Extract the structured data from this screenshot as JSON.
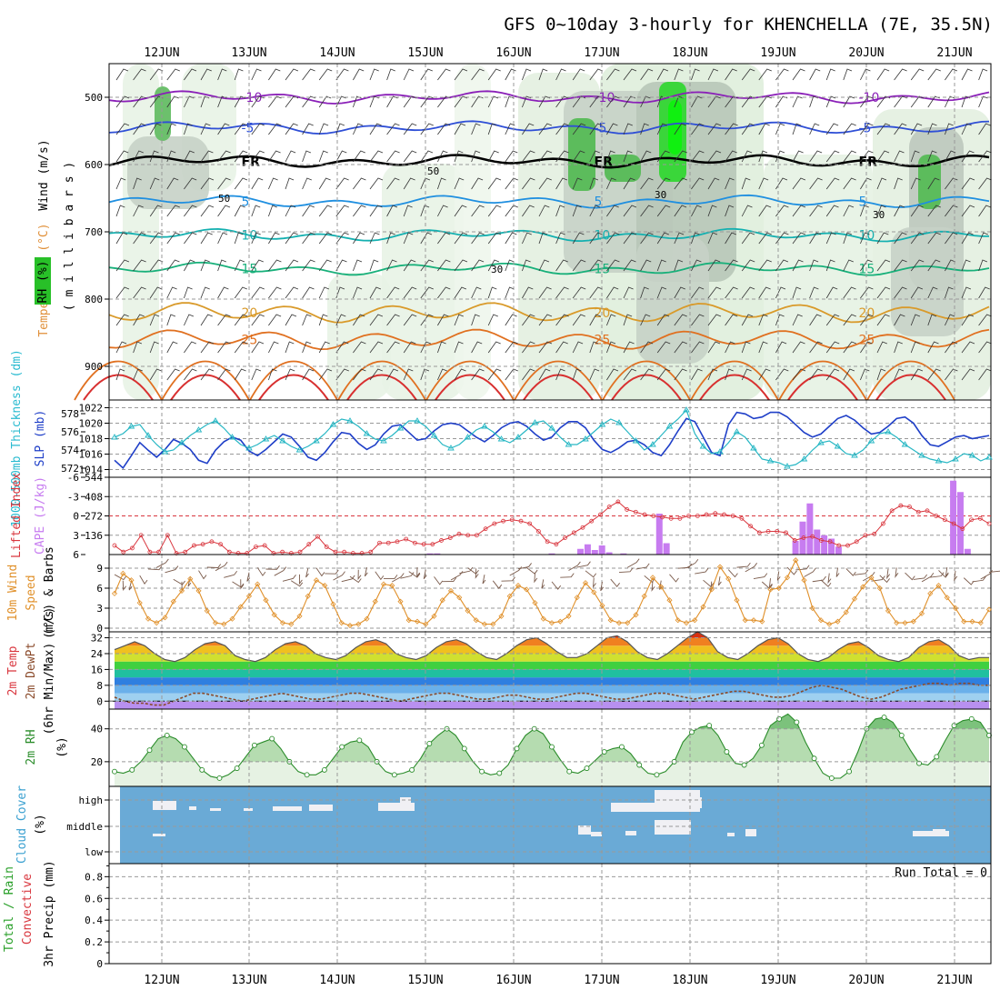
{
  "title": "GFS 0~10day 3-hourly for KHENCHELLA (7E, 35.5N)",
  "date_labels": [
    "12JUN",
    "13JUN",
    "14JUN",
    "15JUN",
    "16JUN",
    "17JUN",
    "18JUN",
    "19JUN",
    "20JUN",
    "21JUN"
  ],
  "colors": {
    "frame": "#000000",
    "grid": "#999999",
    "slp_line": "#1f3fc8",
    "thickness_line": "#27b7c4",
    "lifted_line": "#d9363e",
    "cape_bar": "#c77cf0",
    "wind_line": "#e0902a",
    "rh_line": "#2a8c2a",
    "cloud_bg": "#6aaad6",
    "cloud_patch": "#f0f0f4"
  },
  "chart_data": [
    {
      "type": "heatmap",
      "panel": "upper-air",
      "ylabel_parts": [
        "Temperature (°C)",
        "Wind (m/s)"
      ],
      "ylabel_rh": "RH (%)",
      "ylabel_units": "( m i l l i b a r s )",
      "y_ticks": [
        "500",
        "600",
        "700",
        "800",
        "900"
      ],
      "ylim": [
        450,
        950
      ],
      "temp_isotherms": [
        {
          "label": "-10",
          "level": 500,
          "color": "#8a1fb8"
        },
        {
          "label": "-5",
          "level": 545,
          "color": "#2f4fd6"
        },
        {
          "label": "FR",
          "level": 595,
          "color": "#000000"
        },
        {
          "label": "5",
          "level": 655,
          "color": "#1f8fe0"
        },
        {
          "label": "10",
          "level": 705,
          "color": "#14b0b0"
        },
        {
          "label": "15",
          "level": 755,
          "color": "#18b07a"
        },
        {
          "label": "20",
          "level": 820,
          "color": "#d99a2a"
        },
        {
          "label": "25",
          "level": 860,
          "color": "#e07020"
        }
      ],
      "rh_contour_labels": [
        "30",
        "50",
        "30",
        "50",
        "30"
      ]
    },
    {
      "type": "line",
      "panel": "slp-thickness",
      "ylabel_left": "1000-500mb Thickness (dm)",
      "ylabel_right": "SLP (mb)",
      "thickness_ticks": [
        "572",
        "574",
        "576",
        "578"
      ],
      "slp_ticks": [
        "1014",
        "1016",
        "1018",
        "1020",
        "1022"
      ],
      "slp_ylim": [
        1013,
        1023
      ],
      "thickness_ylim": [
        571,
        579.5
      ],
      "series": [
        {
          "name": "SLP",
          "unit": "mb",
          "values": [
            1015.2,
            1014.2,
            1015.8,
            1017.5,
            1016.5,
            1015.6,
            1016.6,
            1017.9,
            1017.4,
            1016.6,
            1015.2,
            1014.8,
            1016.5,
            1017.6,
            1018.2,
            1017.8,
            1016.4,
            1015.8,
            1016.6,
            1017.6,
            1018.6,
            1018.2,
            1017.0,
            1015.6,
            1015.2,
            1016.2,
            1017.6,
            1018.8,
            1018.6,
            1017.4,
            1016.6,
            1017.2,
            1018.6,
            1019.6,
            1019.8,
            1018.8,
            1017.8,
            1018.0,
            1019.0,
            1019.8,
            1020.0,
            1019.8,
            1019.0,
            1018.2,
            1017.6,
            1018.4,
            1019.4,
            1020.0,
            1020.2,
            1019.6,
            1018.6,
            1017.8,
            1018.2,
            1019.4,
            1020.2,
            1020.2,
            1019.4,
            1017.8,
            1016.6,
            1016.2,
            1016.8,
            1017.6,
            1017.8,
            1017.2,
            1016.2,
            1015.8,
            1017.2,
            1019.0,
            1020.6,
            1020.2,
            1018.2,
            1016.2,
            1015.8,
            1019.8,
            1021.4,
            1021.2,
            1020.6,
            1020.8,
            1021.4,
            1021.4,
            1020.8,
            1019.8,
            1018.8,
            1018.2,
            1018.6,
            1019.6,
            1020.6,
            1021.0,
            1020.4,
            1019.4,
            1018.6,
            1018.8,
            1019.6,
            1020.6,
            1020.8,
            1020.0,
            1018.4,
            1017.2,
            1017.0,
            1017.6,
            1018.2,
            1018.4,
            1018.0,
            1018.2,
            1018.4
          ]
        },
        {
          "name": "Thickness",
          "unit": "dm",
          "values": [
            575.4,
            575.8,
            576.6,
            576.8,
            575.6,
            574.6,
            573.8,
            574.0,
            574.8,
            575.6,
            576.2,
            576.8,
            577.2,
            576.4,
            575.4,
            574.6,
            574.2,
            574.6,
            575.2,
            575.6,
            575.0,
            574.4,
            574.0,
            574.4,
            575.0,
            575.8,
            576.8,
            577.4,
            577.2,
            576.6,
            575.8,
            575.2,
            575.0,
            575.6,
            576.4,
            577.2,
            577.2,
            576.6,
            575.6,
            574.6,
            574.2,
            574.6,
            575.4,
            576.2,
            576.6,
            576.0,
            575.2,
            574.8,
            575.4,
            576.2,
            577.0,
            577.2,
            576.4,
            575.4,
            574.6,
            574.6,
            575.2,
            576.0,
            576.8,
            577.4,
            577.0,
            576.0,
            575.0,
            574.0,
            574.6,
            575.6,
            576.6,
            577.4,
            578.4,
            575.8,
            574.4,
            573.6,
            573.8,
            574.8,
            576.0,
            575.4,
            574.2,
            573.0,
            572.8,
            572.6,
            572.2,
            572.4,
            573.0,
            574.0,
            574.8,
            575.0,
            574.4,
            573.6,
            573.4,
            574.0,
            575.0,
            575.8,
            576.0,
            575.4,
            574.6,
            574.0,
            573.4,
            573.0,
            572.8,
            572.6,
            573.0,
            573.6,
            573.4,
            572.8,
            573.2
          ]
        }
      ]
    },
    {
      "type": "bar",
      "panel": "lifted-cape",
      "ylabel_left": "Lifted Index",
      "ylabel_right": "CAPE (J/kg)",
      "li_ticks": [
        "-6",
        "-3",
        "0",
        "3",
        "6"
      ],
      "cape_ticks": [
        "544",
        "408",
        "272",
        "136"
      ],
      "cape_ylim": [
        0,
        544
      ],
      "li_ylim": [
        -6,
        6
      ],
      "series": [
        {
          "name": "Lifted Index",
          "values": [
            4.6,
            5.6,
            5.0,
            3.0,
            5.6,
            5.6,
            3.0,
            5.8,
            5.6,
            4.6,
            4.4,
            4.0,
            4.4,
            5.6,
            5.8,
            5.8,
            4.8,
            4.6,
            5.8,
            5.6,
            5.8,
            5.6,
            4.4,
            3.2,
            4.8,
            5.6,
            5.6,
            5.8,
            5.8,
            5.6,
            4.2,
            4.2,
            4.0,
            3.6,
            4.2,
            4.4,
            4.4,
            3.8,
            3.4,
            2.8,
            3.0,
            3.0,
            2.0,
            1.2,
            0.8,
            0.6,
            0.8,
            1.2,
            2.4,
            4.0,
            4.4,
            3.4,
            2.6,
            1.8,
            0.8,
            -0.2,
            -1.4,
            -2.2,
            -1.0,
            -0.6,
            -0.2,
            0.0,
            0.2,
            0.4,
            0.4,
            0.0,
            0.0,
            -0.2,
            -0.4,
            -0.2,
            0.0,
            0.4,
            1.6,
            2.6,
            2.4,
            2.4,
            2.6,
            3.8,
            3.4,
            3.2,
            3.8,
            4.0,
            4.6,
            4.6,
            4.0,
            3.0,
            2.8,
            1.2,
            -0.8,
            -1.6,
            -1.4,
            -0.6,
            -0.8,
            0.0,
            0.6,
            1.2,
            2.0,
            0.6,
            0.4,
            1.2
          ]
        },
        {
          "name": "CAPE",
          "values": [
            0,
            0,
            0,
            0,
            0,
            0,
            0,
            0,
            0,
            0,
            0,
            0,
            0,
            0,
            0,
            0,
            0,
            0,
            0,
            0,
            0,
            0,
            0,
            0,
            0,
            0,
            0,
            0,
            0,
            0,
            0,
            0,
            0,
            0,
            0,
            0,
            0,
            0,
            0,
            0,
            0,
            0,
            0,
            0,
            8,
            8,
            0,
            0,
            0,
            0,
            0,
            0,
            0,
            0,
            0,
            0,
            0,
            0,
            0,
            0,
            0,
            8,
            0,
            0,
            0,
            40,
            72,
            32,
            64,
            16,
            0,
            8,
            0,
            0,
            0,
            0,
            288,
            80,
            0,
            0,
            0,
            0,
            0,
            0,
            0,
            0,
            0,
            0,
            0,
            0,
            0,
            0,
            0,
            0,
            0,
            96,
            232,
            360,
            176,
            136,
            112,
            56,
            0,
            0,
            0,
            0,
            0,
            0,
            0,
            0,
            0,
            0,
            0,
            0,
            0,
            0,
            0,
            520,
            440,
            40,
            0,
            0,
            0
          ]
        }
      ]
    },
    {
      "type": "line",
      "panel": "10m-wind",
      "ylabel_parts": [
        "10m Wind",
        "Speed",
        "(m/s) & Barbs"
      ],
      "y_ticks": [
        "0",
        "3",
        "6",
        "9"
      ],
      "ylim": [
        0,
        10.5
      ],
      "series": [
        {
          "name": "10m Wind Speed",
          "unit": "m/s",
          "values": [
            5.2,
            8.2,
            7.2,
            3.8,
            1.4,
            0.8,
            1.6,
            4.0,
            5.6,
            7.4,
            5.6,
            2.6,
            0.8,
            0.6,
            1.4,
            3.2,
            4.8,
            6.6,
            4.2,
            2.0,
            0.8,
            0.6,
            1.8,
            4.8,
            7.2,
            6.4,
            3.6,
            0.8,
            0.4,
            0.6,
            1.4,
            4.0,
            6.6,
            6.4,
            4.0,
            1.2,
            1.0,
            0.6,
            1.8,
            4.2,
            5.6,
            4.6,
            2.6,
            1.2,
            0.6,
            0.6,
            1.8,
            4.8,
            6.4,
            5.8,
            3.8,
            1.4,
            0.8,
            1.0,
            1.8,
            4.6,
            6.8,
            5.4,
            3.4,
            1.2,
            0.8,
            0.8,
            2.0,
            4.8,
            7.6,
            6.2,
            4.2,
            1.2,
            0.8,
            1.2,
            3.2,
            5.8,
            9.2,
            7.4,
            4.2,
            1.2,
            1.2,
            1.0,
            5.8,
            6.0,
            7.6,
            10.2,
            7.2,
            3.0,
            1.2,
            0.6,
            1.0,
            2.4,
            4.4,
            6.2,
            7.6,
            6.0,
            2.6,
            0.8,
            0.8,
            1.0,
            2.2,
            5.2,
            6.4,
            4.6,
            3.0,
            1.0,
            1.0,
            0.8,
            2.8
          ]
        }
      ]
    },
    {
      "type": "area",
      "panel": "2m-temp",
      "ylabel_parts": [
        "2m Temp",
        "2m DewPt",
        "(6hr Min/Max) (°C)"
      ],
      "y_ticks": [
        "0",
        "8",
        "16",
        "24",
        "32"
      ],
      "ylim": [
        -4,
        35
      ],
      "series": [
        {
          "name": "2m Temp",
          "unit": "°C",
          "values": [
            26,
            28,
            30,
            28,
            24,
            21,
            20,
            22,
            26,
            29,
            30,
            28,
            23,
            21,
            20,
            22,
            26,
            29,
            30,
            28,
            24,
            22,
            21,
            23,
            27,
            30,
            31,
            29,
            24,
            22,
            21,
            23,
            27,
            30,
            31,
            29,
            25,
            22,
            21,
            24,
            28,
            31,
            32,
            29,
            25,
            22,
            22,
            24,
            28,
            32,
            33,
            30,
            25,
            22,
            21,
            24,
            28,
            32,
            35,
            32,
            25,
            22,
            21,
            24,
            28,
            31,
            32,
            29,
            24,
            21,
            20,
            22,
            26,
            29,
            30,
            27,
            23,
            21,
            20,
            22,
            27,
            30,
            31,
            28,
            23,
            21,
            22,
            22
          ]
        },
        {
          "name": "2m DewPt",
          "unit": "°C",
          "values": [
            2,
            0,
            -1,
            -1,
            -2,
            -2,
            0,
            2,
            4,
            4,
            3,
            2,
            1,
            0,
            1,
            2,
            3,
            4,
            3,
            2,
            1,
            1,
            2,
            3,
            4,
            4,
            3,
            2,
            1,
            0,
            1,
            2,
            3,
            4,
            4,
            3,
            2,
            1,
            1,
            2,
            3,
            3,
            2,
            1,
            1,
            2,
            3,
            4,
            4,
            3,
            2,
            1,
            1,
            2,
            3,
            4,
            4,
            3,
            2,
            1,
            2,
            3,
            4,
            5,
            5,
            4,
            3,
            2,
            2,
            3,
            5,
            7,
            8,
            7,
            6,
            4,
            2,
            1,
            2,
            4,
            6,
            7,
            8,
            9,
            9,
            8,
            9,
            9,
            8,
            8
          ]
        }
      ]
    },
    {
      "type": "area",
      "panel": "2m-rh",
      "ylabel_parts": [
        "2m RH",
        "(%)"
      ],
      "y_ticks": [
        "20",
        "40"
      ],
      "ylim": [
        5,
        52
      ],
      "series": [
        {
          "name": "2m RH",
          "unit": "%",
          "values": [
            14,
            13,
            15,
            20,
            27,
            34,
            36,
            34,
            29,
            22,
            15,
            11,
            10,
            12,
            16,
            23,
            30,
            32,
            34,
            28,
            20,
            14,
            12,
            12,
            15,
            22,
            29,
            32,
            33,
            29,
            20,
            14,
            12,
            13,
            15,
            22,
            31,
            36,
            40,
            36,
            28,
            20,
            14,
            12,
            13,
            18,
            28,
            36,
            40,
            37,
            29,
            21,
            14,
            13,
            16,
            21,
            26,
            28,
            29,
            25,
            18,
            13,
            12,
            14,
            20,
            32,
            38,
            41,
            42,
            36,
            26,
            19,
            18,
            22,
            30,
            42,
            46,
            49,
            44,
            32,
            22,
            13,
            10,
            10,
            14,
            26,
            40,
            46,
            47,
            44,
            36,
            27,
            19,
            18,
            23,
            33,
            42,
            45,
            46,
            44,
            36
          ]
        }
      ]
    },
    {
      "type": "heatmap",
      "panel": "cloud-cover",
      "ylabel_parts": [
        "Cloud Cover",
        "(%)"
      ],
      "y_ticks": [
        "high",
        "middle",
        "low"
      ]
    },
    {
      "type": "bar",
      "panel": "3hr-precip",
      "ylabel_parts": [
        "Total / Rain",
        "Convective",
        "3hr Precip (mm)"
      ],
      "y_ticks": [
        "0",
        "0.2",
        "0.4",
        "0.6",
        "0.8"
      ],
      "ylim": [
        0,
        0.92
      ],
      "run_total_label": "Run Total = 0",
      "values": []
    }
  ]
}
